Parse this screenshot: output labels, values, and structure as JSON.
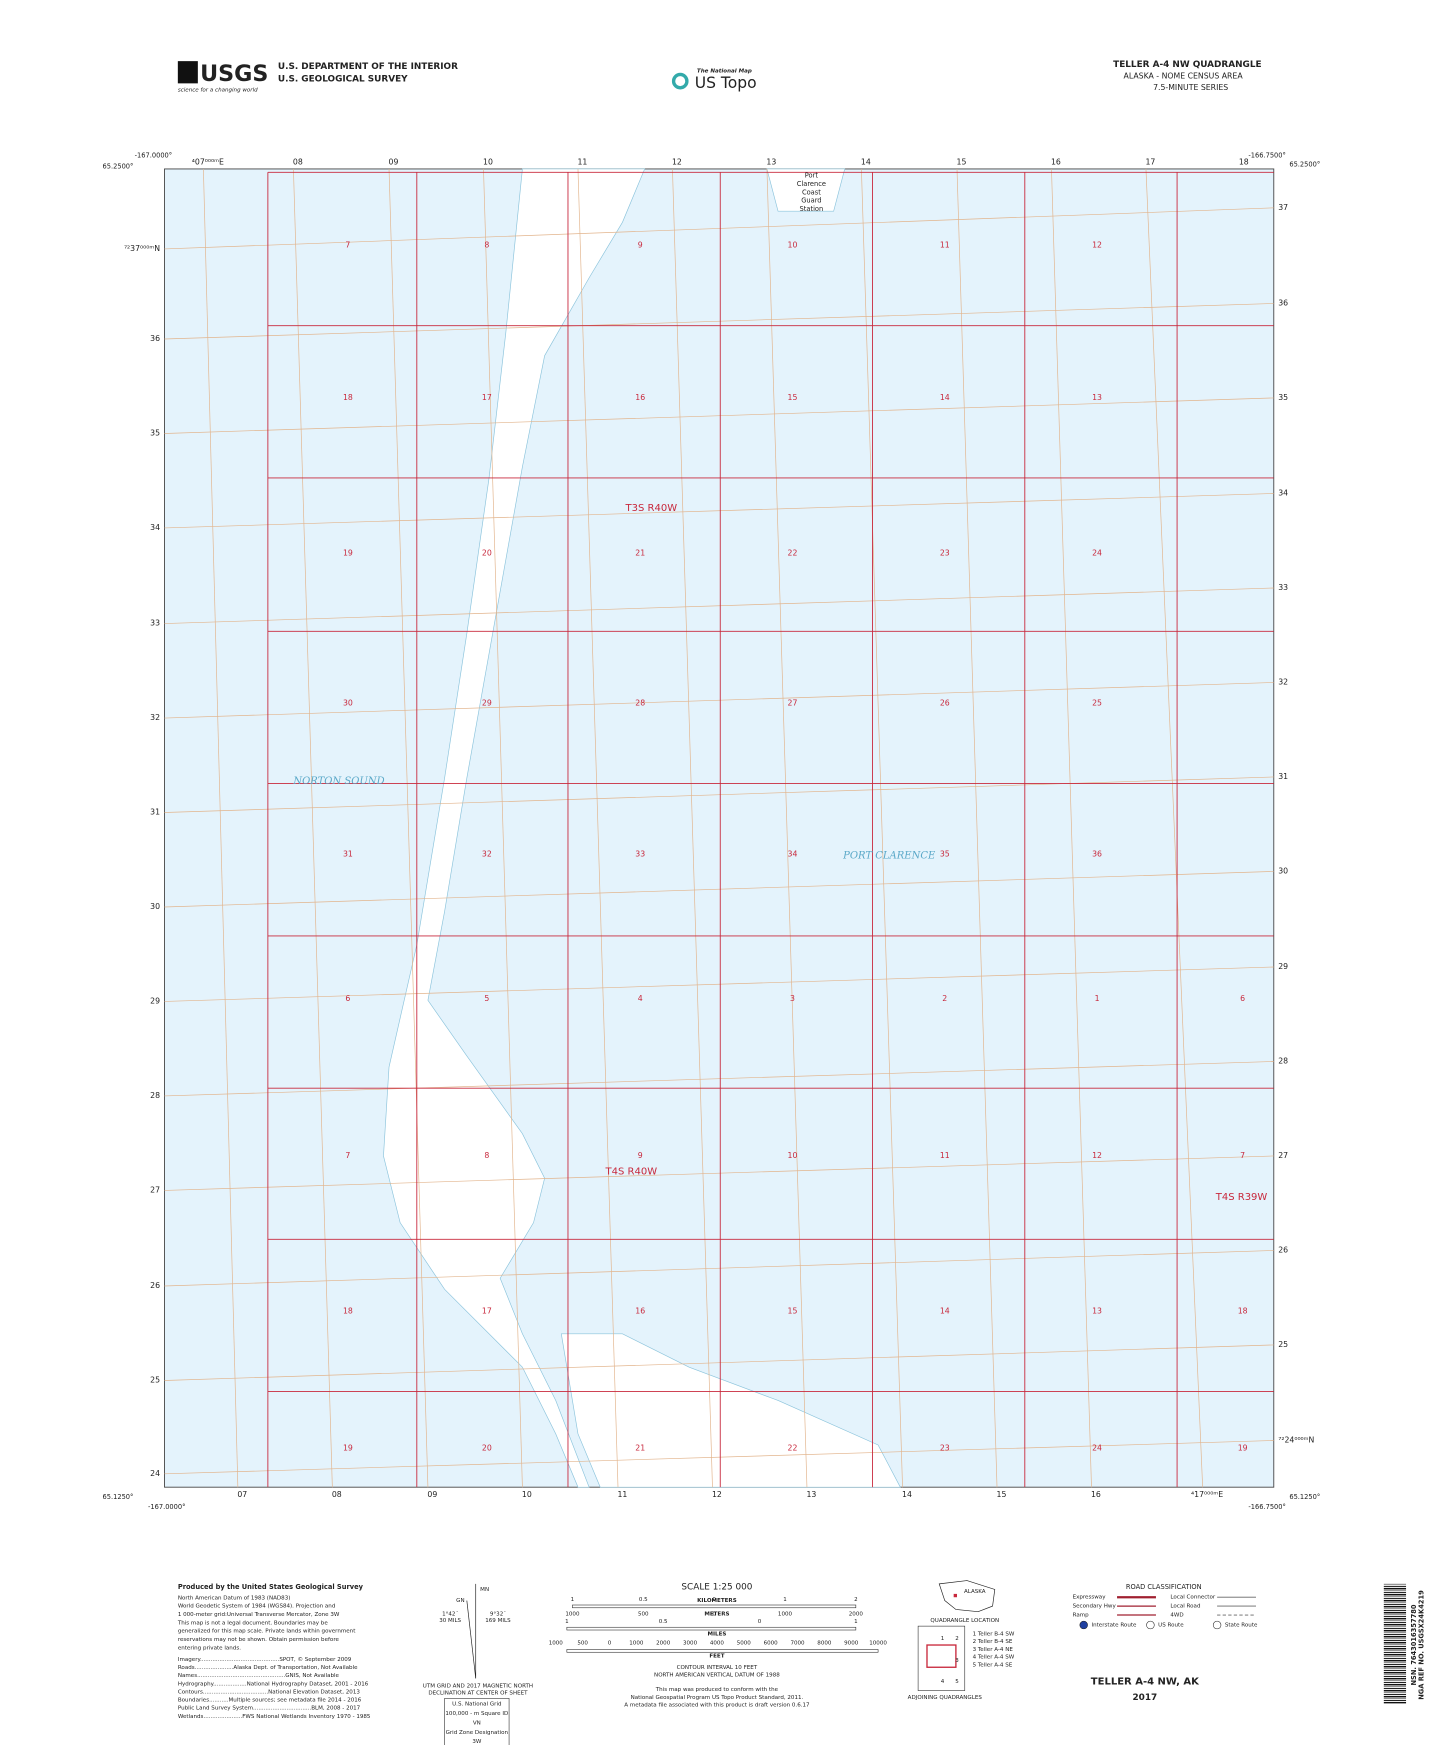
{
  "header": {
    "logo": "USGS",
    "logo_tagline": "science for a changing world",
    "agency_line1": "U.S. DEPARTMENT OF THE INTERIOR",
    "agency_line2": "U.S. GEOLOGICAL SURVEY",
    "national_map": "The National Map",
    "us_topo": "US Topo",
    "quad_title": "TELLER A-4 NW QUADRANGLE",
    "quad_sub1": "ALASKA - NOME CENSUS AREA",
    "quad_sub2": "7.5-MINUTE SERIES"
  },
  "map": {
    "corners": {
      "top_left_lon": "-167.0000°",
      "top_left_lat": "65.2500°",
      "top_right_lon": "-166.7500°",
      "top_right_lat": "65.2500°",
      "bottom_left_lat": "65.1250°",
      "bottom_left_lon": "-167.0000°",
      "bottom_right_lat": "65.1250°",
      "bottom_right_lon": "-166.7500°"
    },
    "top_ticks": [
      "⁴07⁰⁰⁰ᵐE",
      "08",
      "09",
      "10",
      "11",
      "12",
      "13",
      "14",
      "15",
      "16",
      "17",
      "18"
    ],
    "bottom_ticks": [
      "07",
      "08",
      "09",
      "10",
      "11",
      "12",
      "13",
      "14",
      "15",
      "16",
      "⁴17⁰⁰⁰ᵐE"
    ],
    "left_ticks": [
      "⁷²37⁰⁰⁰ᵐN",
      "36",
      "35",
      "34",
      "33",
      "32",
      "31",
      "30",
      "29",
      "28",
      "27",
      "26",
      "25",
      "24"
    ],
    "right_ticks": [
      "37",
      "36",
      "35",
      "34",
      "33",
      "32",
      "31",
      "30",
      "29",
      "28",
      "27",
      "26",
      "25",
      "⁷²24⁰⁰⁰ᵐN"
    ],
    "sections": [
      [
        "7",
        "8",
        "9",
        "10",
        "11",
        "12"
      ],
      [
        "18",
        "17",
        "16",
        "15",
        "14",
        "13"
      ],
      [
        "19",
        "20",
        "21",
        "22",
        "23",
        "24"
      ],
      [
        "30",
        "29",
        "28",
        "27",
        "26",
        "25"
      ],
      [
        "31",
        "32",
        "33",
        "34",
        "35",
        "36"
      ],
      [
        "6",
        "5",
        "4",
        "3",
        "2",
        "1",
        "6"
      ],
      [
        "7",
        "8",
        "9",
        "10",
        "11",
        "12",
        "7"
      ],
      [
        "18",
        "17",
        "16",
        "15",
        "14",
        "13",
        "18"
      ],
      [
        "19",
        "20",
        "21",
        "22",
        "23",
        "24",
        "19"
      ]
    ],
    "townships": [
      "T3S R40W",
      "T4S R40W",
      "T4S R39W"
    ],
    "station": [
      "Port",
      "Clarence",
      "Coast",
      "Guard",
      "Station"
    ],
    "water_names": [
      "NORTON SOUND",
      "PORT CLARENCE"
    ]
  },
  "footer": {
    "credits": [
      "Produced by the United States Geological Survey",
      "North American Datum of 1983 (NAD83)",
      "World Geodetic System of 1984 (WGS84). Projection and",
      "1 000-meter grid:Universal Transverse Mercator, Zone 3W",
      "This map is not a legal document. Boundaries may be",
      "generalized for this map scale. Private lands within government",
      "reservations may not be shown. Obtain permission before",
      "entering private lands."
    ],
    "sources": [
      "Imagery.............................................SPOT, © September 2009",
      "Roads......................Alaska Dept. of Transportation, Not Available",
      "Names..................................................GNIS, Not Available",
      "Hydrography...................National Hydrography Dataset, 2001 - 2016",
      "Contours.....................................National Elevation Dataset, 2013",
      "Boundaries...........Multiple sources; see metadata file 2014 - 2016",
      "Public Land Survey System.................................BLM, 2008 - 2017",
      "Wetlands......................FWS National Wetlands Inventory 1970 - 1985"
    ],
    "declination": {
      "mn": "MN",
      "gn": "GN",
      "left_angle": "1°42´",
      "left_mils": "30 MILS",
      "right_angle": "9°32´",
      "right_mils": "169 MILS",
      "caption": [
        "UTM GRID AND 2017 MAGNETIC NORTH",
        "DECLINATION AT CENTER OF SHEET"
      ]
    },
    "usng": {
      "title": "U.S. National Grid",
      "square_label": "100,000 - m Square ID",
      "square": "VN",
      "zone_label": "Grid Zone Designation",
      "zone": "3W"
    },
    "scale": {
      "title": "SCALE 1:25 000",
      "km_numbers": [
        "1",
        "0.5",
        "0",
        "1",
        "2"
      ],
      "km_label": "KILOMETERS",
      "m_numbers": [
        "1000",
        "500",
        "0",
        "1000",
        "2000"
      ],
      "m_label": "METERS",
      "mi_numbers": [
        "1",
        "0.5",
        "0",
        "1"
      ],
      "mi_label": "MILES",
      "ft_numbers": [
        "1000",
        "500",
        "0",
        "1000",
        "2000",
        "3000",
        "4000",
        "5000",
        "6000",
        "7000",
        "8000",
        "9000",
        "10000"
      ],
      "ft_label": "FEET"
    },
    "contour": [
      "CONTOUR INTERVAL 10 FEET",
      "NORTH AMERICAN VERTICAL DATUM OF 1988"
    ],
    "conformance": [
      "This map was produced to conform with the",
      "National Geospatial Program US Topo Product Standard, 2011.",
      "A metadata file associated with this product is draft version 0.6.17"
    ],
    "location": {
      "state": "ALASKA",
      "caption": "QUADRANGLE LOCATION"
    },
    "adjoining": {
      "cells": [
        "1",
        "2",
        "3",
        "4",
        "5"
      ],
      "list": [
        "1 Teller B-4 SW",
        "2 Teller B-4 SE",
        "3 Teller A-4 NE",
        "4 Teller A-4 SW",
        "5 Teller A-4 SE"
      ],
      "caption": "ADJOINING QUADRANGLES"
    },
    "roads": {
      "title": "ROAD CLASSIFICATION",
      "left": [
        "Expressway",
        "Secondary Hwy",
        "Ramp"
      ],
      "right": [
        "Local Connector",
        "Local Road",
        "4WD"
      ],
      "routes": [
        "Interstate Route",
        "US Route",
        "State Route"
      ]
    },
    "sheet_title": "TELLER A-4 NW, AK",
    "year": "2017",
    "barcode": [
      "NSN. 7643016357780",
      "NGA REF NO. USGSX24K4219"
    ]
  }
}
